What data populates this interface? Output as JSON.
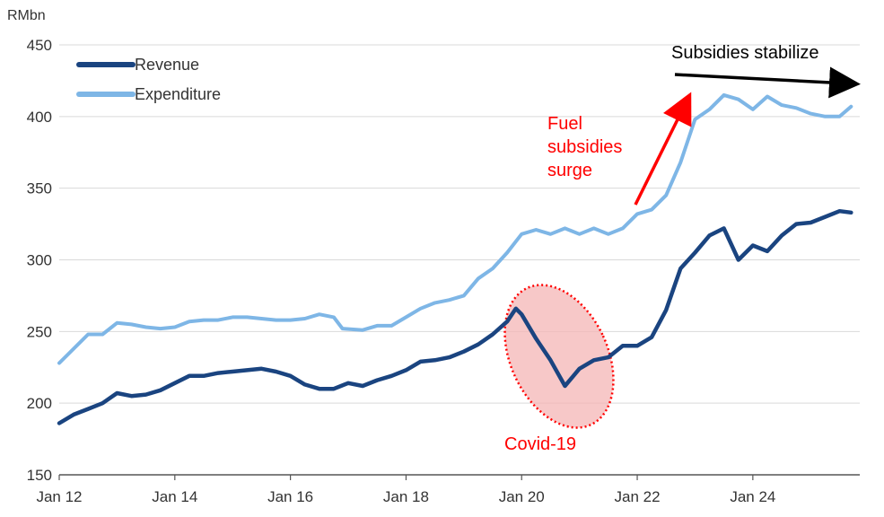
{
  "chart_data": {
    "type": "line",
    "ylabel": "RMbn",
    "ylim": [
      150,
      450
    ],
    "yticks": [
      150,
      200,
      250,
      300,
      350,
      400,
      450
    ],
    "xlim": [
      2012.0,
      2025.85
    ],
    "xticks": [
      {
        "value": 2012,
        "label": "Jan 12"
      },
      {
        "value": 2014,
        "label": "Jan 14"
      },
      {
        "value": 2016,
        "label": "Jan 16"
      },
      {
        "value": 2018,
        "label": "Jan 18"
      },
      {
        "value": 2020,
        "label": "Jan 20"
      },
      {
        "value": 2022,
        "label": "Jan 22"
      },
      {
        "value": 2024,
        "label": "Jan 24"
      }
    ],
    "grid": "horizontal",
    "legend_position": "top-left",
    "series": [
      {
        "name": "Revenue",
        "color": "#1a4480",
        "points": [
          [
            2012.0,
            186
          ],
          [
            2012.25,
            192
          ],
          [
            2012.5,
            196
          ],
          [
            2012.75,
            200
          ],
          [
            2013.0,
            207
          ],
          [
            2013.25,
            205
          ],
          [
            2013.5,
            206
          ],
          [
            2013.75,
            209
          ],
          [
            2014.0,
            214
          ],
          [
            2014.25,
            219
          ],
          [
            2014.5,
            219
          ],
          [
            2014.75,
            221
          ],
          [
            2015.0,
            222
          ],
          [
            2015.25,
            223
          ],
          [
            2015.5,
            224
          ],
          [
            2015.75,
            222
          ],
          [
            2016.0,
            219
          ],
          [
            2016.25,
            213
          ],
          [
            2016.5,
            210
          ],
          [
            2016.75,
            210
          ],
          [
            2017.0,
            214
          ],
          [
            2017.25,
            212
          ],
          [
            2017.5,
            216
          ],
          [
            2017.75,
            219
          ],
          [
            2018.0,
            223
          ],
          [
            2018.25,
            229
          ],
          [
            2018.5,
            230
          ],
          [
            2018.75,
            232
          ],
          [
            2019.0,
            236
          ],
          [
            2019.25,
            241
          ],
          [
            2019.5,
            248
          ],
          [
            2019.75,
            257
          ],
          [
            2019.9,
            266
          ],
          [
            2020.0,
            262
          ],
          [
            2020.25,
            245
          ],
          [
            2020.5,
            230
          ],
          [
            2020.75,
            212
          ],
          [
            2021.0,
            224
          ],
          [
            2021.25,
            230
          ],
          [
            2021.5,
            232
          ],
          [
            2021.75,
            240
          ],
          [
            2022.0,
            240
          ],
          [
            2022.25,
            246
          ],
          [
            2022.5,
            265
          ],
          [
            2022.75,
            294
          ],
          [
            2023.0,
            305
          ],
          [
            2023.25,
            317
          ],
          [
            2023.5,
            322
          ],
          [
            2023.75,
            300
          ],
          [
            2024.0,
            310
          ],
          [
            2024.25,
            306
          ],
          [
            2024.5,
            317
          ],
          [
            2024.75,
            325
          ],
          [
            2025.0,
            326
          ],
          [
            2025.25,
            330
          ],
          [
            2025.5,
            334
          ],
          [
            2025.7,
            333
          ]
        ]
      },
      {
        "name": "Expenditure",
        "color": "#7eb6e6",
        "points": [
          [
            2012.0,
            228
          ],
          [
            2012.25,
            238
          ],
          [
            2012.5,
            248
          ],
          [
            2012.75,
            248
          ],
          [
            2013.0,
            256
          ],
          [
            2013.25,
            255
          ],
          [
            2013.5,
            253
          ],
          [
            2013.75,
            252
          ],
          [
            2014.0,
            253
          ],
          [
            2014.25,
            257
          ],
          [
            2014.5,
            258
          ],
          [
            2014.75,
            258
          ],
          [
            2015.0,
            260
          ],
          [
            2015.25,
            260
          ],
          [
            2015.5,
            259
          ],
          [
            2015.75,
            258
          ],
          [
            2016.0,
            258
          ],
          [
            2016.25,
            259
          ],
          [
            2016.5,
            262
          ],
          [
            2016.75,
            260
          ],
          [
            2016.9,
            252
          ],
          [
            2017.25,
            251
          ],
          [
            2017.5,
            254
          ],
          [
            2017.75,
            254
          ],
          [
            2018.0,
            260
          ],
          [
            2018.25,
            266
          ],
          [
            2018.5,
            270
          ],
          [
            2018.75,
            272
          ],
          [
            2019.0,
            275
          ],
          [
            2019.25,
            287
          ],
          [
            2019.5,
            294
          ],
          [
            2019.75,
            305
          ],
          [
            2020.0,
            318
          ],
          [
            2020.25,
            321
          ],
          [
            2020.5,
            318
          ],
          [
            2020.75,
            322
          ],
          [
            2021.0,
            318
          ],
          [
            2021.25,
            322
          ],
          [
            2021.5,
            318
          ],
          [
            2021.75,
            322
          ],
          [
            2022.0,
            332
          ],
          [
            2022.25,
            335
          ],
          [
            2022.5,
            345
          ],
          [
            2022.75,
            368
          ],
          [
            2023.0,
            398
          ],
          [
            2023.25,
            405
          ],
          [
            2023.5,
            415
          ],
          [
            2023.75,
            412
          ],
          [
            2024.0,
            405
          ],
          [
            2024.25,
            414
          ],
          [
            2024.5,
            408
          ],
          [
            2024.75,
            406
          ],
          [
            2025.0,
            402
          ],
          [
            2025.25,
            400
          ],
          [
            2025.5,
            400
          ],
          [
            2025.7,
            407
          ]
        ]
      }
    ],
    "annotations": [
      {
        "text": "Subsidies stabilize",
        "color": "#000000"
      },
      {
        "text_lines": [
          "Fuel",
          "subsidies",
          "surge"
        ],
        "color": "#ff0000"
      },
      {
        "text": "Covid-19",
        "color": "#ff0000"
      }
    ]
  }
}
